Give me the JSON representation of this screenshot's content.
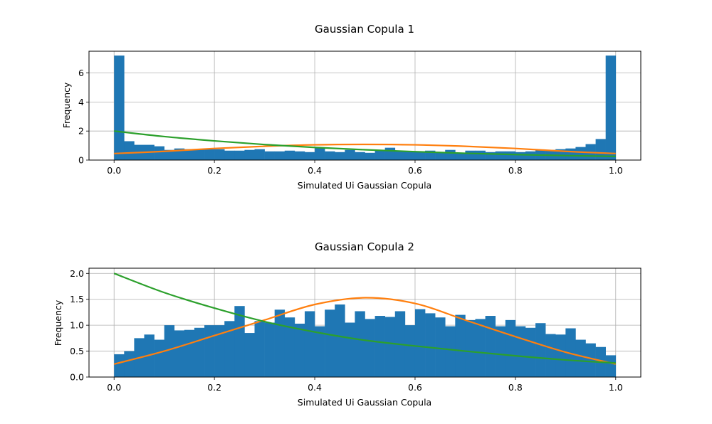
{
  "chart_data": [
    {
      "type": "bar",
      "title": "Gaussian Copula 1",
      "xlabel": "Simulated Ui Gaussian Copula",
      "ylabel": "Frequency",
      "xlim": [
        -0.05,
        1.05
      ],
      "ylim": [
        0,
        7.5
      ],
      "xticks": [
        "0.0",
        "0.2",
        "0.4",
        "0.6",
        "0.8",
        "1.0"
      ],
      "yticks": [
        "0",
        "2",
        "4",
        "6"
      ],
      "grid": true,
      "bin_width": 0.02,
      "histogram": {
        "color": "#1f77b4",
        "bin_starts": [
          0.0,
          0.02,
          0.04,
          0.06,
          0.08,
          0.1,
          0.12,
          0.14,
          0.16,
          0.18,
          0.2,
          0.22,
          0.24,
          0.26,
          0.28,
          0.3,
          0.32,
          0.34,
          0.36,
          0.38,
          0.4,
          0.42,
          0.44,
          0.46,
          0.48,
          0.5,
          0.52,
          0.54,
          0.56,
          0.58,
          0.6,
          0.62,
          0.64,
          0.66,
          0.68,
          0.7,
          0.72,
          0.74,
          0.76,
          0.78,
          0.8,
          0.82,
          0.84,
          0.86,
          0.88,
          0.9,
          0.92,
          0.94,
          0.96,
          0.98
        ],
        "values": [
          7.2,
          1.3,
          1.05,
          1.05,
          0.95,
          0.7,
          0.8,
          0.75,
          0.75,
          0.75,
          0.75,
          0.65,
          0.65,
          0.7,
          0.75,
          0.6,
          0.6,
          0.65,
          0.6,
          0.55,
          0.85,
          0.6,
          0.55,
          0.7,
          0.55,
          0.5,
          0.7,
          0.85,
          0.6,
          0.6,
          0.6,
          0.65,
          0.55,
          0.7,
          0.5,
          0.65,
          0.65,
          0.55,
          0.6,
          0.6,
          0.55,
          0.6,
          0.7,
          0.7,
          0.75,
          0.8,
          0.9,
          1.1,
          1.45,
          7.2
        ]
      },
      "series": [
        {
          "type": "line",
          "color": "#ff7f0e",
          "x": [
            0,
            0.1,
            0.2,
            0.3,
            0.4,
            0.5,
            0.6,
            0.7,
            0.8,
            0.9,
            1.0
          ],
          "y": [
            0.45,
            0.6,
            0.8,
            0.95,
            1.05,
            1.08,
            1.05,
            0.95,
            0.8,
            0.6,
            0.45
          ]
        },
        {
          "type": "line",
          "color": "#2ca02c",
          "x": [
            0,
            0.1,
            0.2,
            0.3,
            0.4,
            0.5,
            0.6,
            0.7,
            0.8,
            0.9,
            1.0
          ],
          "y": [
            2.0,
            1.62,
            1.32,
            1.07,
            0.87,
            0.71,
            0.58,
            0.47,
            0.38,
            0.31,
            0.25
          ]
        }
      ]
    },
    {
      "type": "bar",
      "title": "Gaussian Copula 2",
      "xlabel": "Simulated Ui Gaussian Copula",
      "ylabel": "Frequency",
      "xlim": [
        -0.05,
        1.05
      ],
      "ylim": [
        0,
        2.1
      ],
      "xticks": [
        "0.0",
        "0.2",
        "0.4",
        "0.6",
        "0.8",
        "1.0"
      ],
      "yticks": [
        "0.0",
        "0.5",
        "1.0",
        "1.5",
        "2.0"
      ],
      "grid": true,
      "bin_width": 0.02,
      "histogram": {
        "color": "#1f77b4",
        "bin_starts": [
          0.0,
          0.02,
          0.04,
          0.06,
          0.08,
          0.1,
          0.12,
          0.14,
          0.16,
          0.18,
          0.2,
          0.22,
          0.24,
          0.26,
          0.28,
          0.3,
          0.32,
          0.34,
          0.36,
          0.38,
          0.4,
          0.42,
          0.44,
          0.46,
          0.48,
          0.5,
          0.52,
          0.54,
          0.56,
          0.58,
          0.6,
          0.62,
          0.64,
          0.66,
          0.68,
          0.7,
          0.72,
          0.74,
          0.76,
          0.78,
          0.8,
          0.82,
          0.84,
          0.86,
          0.88,
          0.9,
          0.92,
          0.94,
          0.96,
          0.98
        ],
        "values": [
          0.44,
          0.5,
          0.75,
          0.82,
          0.72,
          1.0,
          0.9,
          0.91,
          0.95,
          1.0,
          1.0,
          1.08,
          1.37,
          0.85,
          1.08,
          1.05,
          1.3,
          1.15,
          1.03,
          1.27,
          0.98,
          1.3,
          1.4,
          1.05,
          1.27,
          1.12,
          1.18,
          1.16,
          1.27,
          1.0,
          1.31,
          1.23,
          1.15,
          0.98,
          1.2,
          1.1,
          1.12,
          1.18,
          0.98,
          1.1,
          0.98,
          0.95,
          1.04,
          0.83,
          0.82,
          0.94,
          0.72,
          0.65,
          0.58,
          0.42
        ]
      },
      "series": [
        {
          "type": "line",
          "color": "#ff7f0e",
          "x": [
            0,
            0.1,
            0.2,
            0.3,
            0.4,
            0.5,
            0.6,
            0.7,
            0.8,
            0.9,
            1.0
          ],
          "y": [
            0.25,
            0.5,
            0.8,
            1.1,
            1.4,
            1.53,
            1.42,
            1.1,
            0.78,
            0.48,
            0.25
          ]
        },
        {
          "type": "line",
          "color": "#2ca02c",
          "x": [
            0,
            0.1,
            0.2,
            0.3,
            0.4,
            0.5,
            0.6,
            0.7,
            0.8,
            0.9,
            1.0
          ],
          "y": [
            2.0,
            1.63,
            1.33,
            1.07,
            0.87,
            0.71,
            0.6,
            0.5,
            0.41,
            0.33,
            0.27
          ]
        }
      ]
    }
  ]
}
